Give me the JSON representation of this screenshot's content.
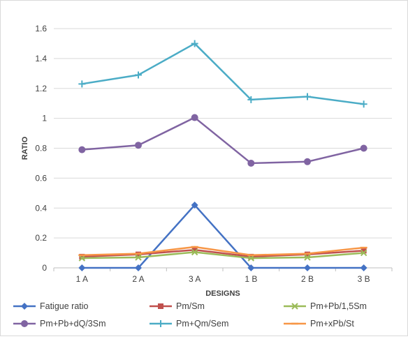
{
  "chart_data": {
    "type": "line",
    "xlabel": "DESIGNS",
    "ylabel": "RATIO",
    "ylim": [
      0,
      1.6
    ],
    "yticks": [
      "0",
      "0.2",
      "0.4",
      "0.6",
      "0.8",
      "1",
      "1.2",
      "1.4",
      "1.6"
    ],
    "categories": [
      "1 A",
      "2 A",
      "3 A",
      "1 B",
      "2 B",
      "3 B"
    ],
    "grid": "horizontal",
    "legend_position": "bottom",
    "series": [
      {
        "name": "Fatigue ratio",
        "color": "#4472c4",
        "marker": "diamond",
        "values": [
          0,
          0,
          0.42,
          0,
          0,
          0
        ]
      },
      {
        "name": "Pm/Sm",
        "color": "#c0504d",
        "marker": "square",
        "values": [
          0.075,
          0.09,
          0.12,
          0.075,
          0.09,
          0.115
        ]
      },
      {
        "name": "Pm+Pb/1,5Sm",
        "color": "#9bbb59",
        "marker": "x",
        "values": [
          0.065,
          0.07,
          0.105,
          0.065,
          0.07,
          0.1
        ]
      },
      {
        "name": "Pm+Pb+dQ/3Sm",
        "color": "#8064a2",
        "marker": "circle",
        "values": [
          0.79,
          0.82,
          1.005,
          0.7,
          0.71,
          0.8
        ]
      },
      {
        "name": "Pm+Qm/Sem",
        "color": "#4bacc6",
        "marker": "plus",
        "values": [
          1.23,
          1.29,
          1.5,
          1.125,
          1.145,
          1.095
        ]
      },
      {
        "name": "Pm+xPb/St",
        "color": "#f79646",
        "marker": "dash",
        "values": [
          0.085,
          0.095,
          0.14,
          0.085,
          0.095,
          0.135
        ]
      }
    ]
  }
}
